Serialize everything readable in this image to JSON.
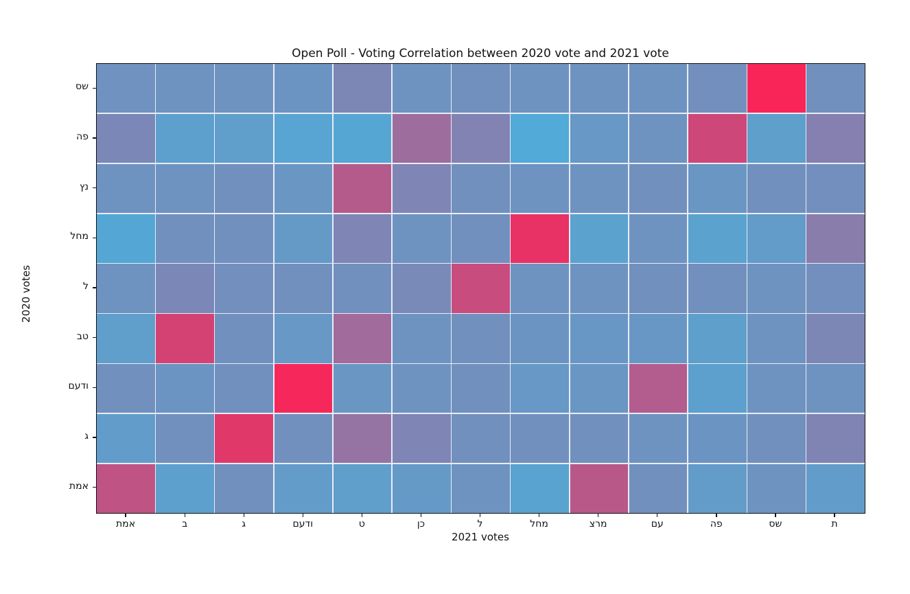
{
  "chart_data": {
    "type": "heatmap",
    "title": "Open Poll - Voting Correlation between 2020 vote and 2021 vote",
    "xlabel": "2021 votes",
    "ylabel": "2020 votes",
    "x_categories": [
      "אמת",
      "ב",
      "ג",
      "ודעם",
      "ט",
      "כן",
      "ל",
      "מחל",
      "מרצ",
      "עם",
      "פה",
      "שס",
      "ת"
    ],
    "y_categories": [
      "שס",
      "פה",
      "נץ",
      "מחל",
      "ל",
      "טב",
      "ודעם",
      "ג",
      "אמת"
    ],
    "values": [
      [
        0.19,
        0.18,
        0.18,
        0.17,
        0.27,
        0.18,
        0.2,
        0.18,
        0.18,
        0.18,
        0.21,
        1.0,
        0.2
      ],
      [
        0.26,
        0.08,
        0.1,
        0.05,
        0.04,
        0.46,
        0.3,
        0.01,
        0.14,
        0.18,
        0.74,
        0.09,
        0.32
      ],
      [
        0.18,
        0.18,
        0.2,
        0.16,
        0.6,
        0.28,
        0.2,
        0.18,
        0.18,
        0.2,
        0.16,
        0.2,
        0.21
      ],
      [
        0.03,
        0.2,
        0.2,
        0.13,
        0.28,
        0.18,
        0.2,
        0.9,
        0.07,
        0.18,
        0.07,
        0.12,
        0.34
      ],
      [
        0.18,
        0.26,
        0.21,
        0.2,
        0.2,
        0.25,
        0.71,
        0.18,
        0.18,
        0.2,
        0.2,
        0.18,
        0.21
      ],
      [
        0.1,
        0.78,
        0.2,
        0.14,
        0.48,
        0.18,
        0.2,
        0.17,
        0.15,
        0.15,
        0.09,
        0.18,
        0.27
      ],
      [
        0.2,
        0.17,
        0.2,
        0.98,
        0.16,
        0.18,
        0.2,
        0.14,
        0.16,
        0.58,
        0.08,
        0.18,
        0.18
      ],
      [
        0.11,
        0.2,
        0.86,
        0.2,
        0.41,
        0.28,
        0.2,
        0.2,
        0.2,
        0.18,
        0.17,
        0.2,
        0.29
      ],
      [
        0.66,
        0.08,
        0.2,
        0.12,
        0.1,
        0.13,
        0.18,
        0.06,
        0.62,
        0.2,
        0.12,
        0.18,
        0.11
      ]
    ],
    "value_range": [
      0,
      1
    ],
    "colormap": {
      "low": "#4fabd8",
      "high": "#f92558"
    },
    "grid_line_color": "#e9edf7",
    "legend": "none",
    "grid": "cell-borders"
  }
}
